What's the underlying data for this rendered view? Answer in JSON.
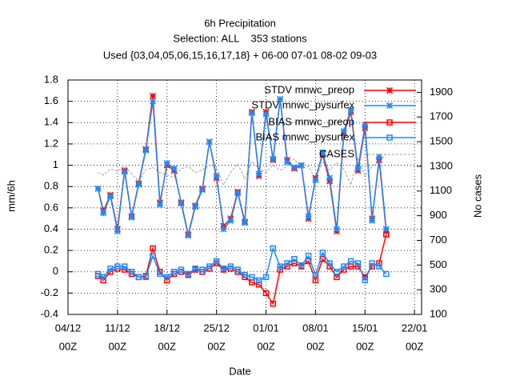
{
  "chart_data": {
    "type": "line",
    "title": "6h Precipitation",
    "subtitle": "Selection: ALL    353 stations",
    "subtitle2": "Used {03,04,05,06,15,16,17,18} + 06-00 07-01 08-02 09-03",
    "xlabel": "Date",
    "ylabel": "mm/6h",
    "y2label": "No cases",
    "x": [
      4.25,
      5,
      6,
      7,
      8,
      9,
      10,
      11,
      12,
      13,
      14,
      15,
      16,
      17,
      18,
      19,
      20,
      21,
      22,
      23,
      24,
      25,
      26,
      27,
      28,
      29,
      30,
      31,
      32,
      33,
      34,
      35,
      36,
      37,
      38,
      39,
      40,
      41,
      42,
      43,
      44,
      45
    ],
    "xlim": [
      0,
      50
    ],
    "xticks": [
      {
        "value": 0,
        "label": [
          "04/12",
          "00Z"
        ]
      },
      {
        "value": 7,
        "label": [
          "11/12",
          "00Z"
        ]
      },
      {
        "value": 14,
        "label": [
          "18/12",
          "00Z"
        ]
      },
      {
        "value": 21,
        "label": [
          "25/12",
          "00Z"
        ]
      },
      {
        "value": 28,
        "label": [
          "01/01",
          "00Z"
        ]
      },
      {
        "value": 35,
        "label": [
          "08/01",
          "00Z"
        ]
      },
      {
        "value": 42,
        "label": [
          "15/01",
          "00Z"
        ]
      },
      {
        "value": 49,
        "label": [
          "22/01",
          "00Z"
        ]
      }
    ],
    "ylim": [
      -0.4,
      1.8
    ],
    "yticks": [
      -0.4,
      -0.2,
      0,
      0.2,
      0.4,
      0.6,
      0.8,
      1,
      1.2,
      1.4,
      1.6,
      1.8
    ],
    "y2lim": [
      100,
      2000
    ],
    "y2ticks": [
      100,
      300,
      500,
      700,
      900,
      1100,
      1300,
      1500,
      1700,
      1900
    ],
    "grid": true,
    "legend": "upper right",
    "series": [
      {
        "name": "STDV mnwc_preop",
        "color": "#ff0000",
        "marker": "star",
        "values": [
          0.78,
          0.57,
          0.72,
          0.4,
          0.95,
          0.52,
          0.83,
          1.15,
          1.65,
          0.65,
          1.0,
          0.95,
          0.65,
          0.35,
          0.62,
          0.78,
          1.22,
          0.88,
          0.43,
          0.5,
          0.75,
          0.47,
          1.5,
          0.9,
          1.5,
          1.05,
          1.62,
          1.05,
          0.97,
          1.0,
          0.5,
          0.88,
          1.1,
          0.85,
          0.38,
          1.3,
          1.5,
          0.95,
          1.35,
          0.5,
          1.05,
          0.38
        ]
      },
      {
        "name": "STDV mnwc_pysurfex",
        "color": "#1a8cff",
        "marker": "star",
        "values": [
          0.78,
          0.55,
          0.71,
          0.38,
          0.94,
          0.51,
          0.82,
          1.14,
          1.6,
          0.63,
          1.02,
          0.97,
          0.64,
          0.34,
          0.61,
          0.77,
          1.22,
          0.9,
          0.4,
          0.48,
          0.74,
          0.46,
          1.49,
          0.92,
          1.48,
          1.06,
          1.62,
          1.03,
          0.98,
          1.0,
          0.52,
          0.86,
          1.12,
          0.88,
          0.4,
          1.32,
          1.52,
          0.97,
          1.38,
          0.48,
          1.08,
          0.4
        ]
      },
      {
        "name": "BIAS mnwc_preop",
        "color": "#ff0000",
        "marker": "square",
        "values": [
          -0.04,
          -0.08,
          0.0,
          0.03,
          0.02,
          -0.02,
          -0.05,
          -0.04,
          0.22,
          0.0,
          -0.08,
          -0.02,
          0.0,
          -0.03,
          0.02,
          0.0,
          0.03,
          0.08,
          0.02,
          0.03,
          0.0,
          -0.05,
          -0.1,
          -0.12,
          -0.2,
          -0.3,
          0.02,
          0.05,
          0.08,
          0.05,
          0.1,
          -0.08,
          0.12,
          0.05,
          -0.05,
          0.02,
          0.05,
          0.05,
          -0.05,
          0.05,
          0.08,
          0.35
        ]
      },
      {
        "name": "BIAS mnwc_pysurfex",
        "color": "#1a8cff",
        "marker": "square",
        "values": [
          -0.02,
          -0.05,
          0.03,
          0.05,
          0.05,
          0.0,
          -0.05,
          -0.05,
          0.15,
          -0.02,
          -0.05,
          0.0,
          0.02,
          -0.02,
          0.03,
          0.02,
          0.05,
          0.1,
          0.03,
          0.05,
          0.02,
          -0.03,
          -0.05,
          -0.08,
          -0.05,
          0.22,
          0.05,
          0.08,
          0.12,
          0.06,
          0.15,
          -0.03,
          0.18,
          0.08,
          0.0,
          0.05,
          0.1,
          0.08,
          -0.08,
          0.08,
          0.05,
          -0.02
        ]
      },
      {
        "name": "CASES",
        "color": "#a0a0a0",
        "axis": "y2",
        "dashed": true,
        "values": [
          1250,
          1230,
          1280,
          1260,
          1300,
          1240,
          1180,
          1270,
          1290,
          1250,
          1230,
          1210,
          1280,
          1300,
          1250,
          1270,
          1310,
          1290,
          1150,
          1250,
          1320,
          1200,
          1340,
          1280,
          1250,
          1310,
          1270,
          1300,
          1360,
          1280,
          1300,
          1200,
          1340,
          1270,
          1330,
          1280,
          1150,
          1370,
          1220,
          1300,
          1340,
          1400
        ]
      }
    ]
  }
}
